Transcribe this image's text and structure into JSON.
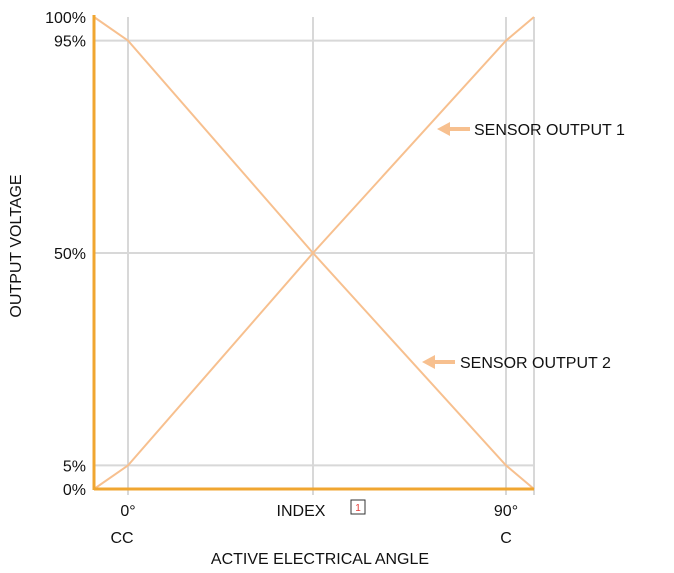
{
  "colors": {
    "axis": "#f0a630",
    "series": "#f7c08f",
    "grid": "#d8d8d8",
    "note_box": "#e53935"
  },
  "chart_data": {
    "type": "line",
    "xlabel": "ACTIVE ELECTRICAL ANGLE",
    "ylabel": "OUTPUT VOLTAGE",
    "ylim": [
      0,
      100
    ],
    "grid": true,
    "x_ticks": [
      {
        "line1": "0°",
        "line2": "CC"
      },
      {
        "line1": "INDEX",
        "line2": "",
        "note": "1"
      },
      {
        "line1": "90°",
        "line2": "C"
      }
    ],
    "y_ticks": [
      {
        "value": 0,
        "label": "0%"
      },
      {
        "value": 5,
        "label": "5%"
      },
      {
        "value": 50,
        "label": "50%"
      },
      {
        "value": 95,
        "label": "95%"
      },
      {
        "value": 100,
        "label": "100%"
      }
    ],
    "series": [
      {
        "name": "SENSOR OUTPUT 1",
        "points": [
          [
            "start",
            0
          ],
          [
            "0°",
            5
          ],
          [
            "INDEX",
            50
          ],
          [
            "90°",
            95
          ],
          [
            "end",
            100
          ]
        ]
      },
      {
        "name": "SENSOR OUTPUT 2",
        "points": [
          [
            "start",
            100
          ],
          [
            "0°",
            95
          ],
          [
            "INDEX",
            50
          ],
          [
            "90°",
            5
          ],
          [
            "end",
            0
          ]
        ]
      }
    ]
  }
}
